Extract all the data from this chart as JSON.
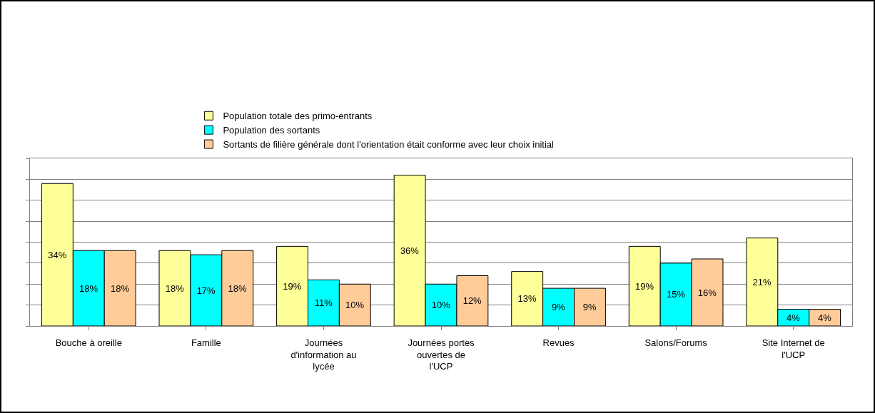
{
  "chart_data": {
    "type": "bar",
    "categories": [
      "Bouche à oreille",
      "Famille",
      "Journées d'information au lycée",
      "Journées portes ouvertes de l'UCP",
      "Revues",
      "Salons/Forums",
      "Site Internet de l'UCP"
    ],
    "series": [
      {
        "name": "Population totale des primo-entrants",
        "color": "#ffff99",
        "values": [
          34,
          18,
          19,
          36,
          13,
          19,
          21
        ],
        "value_labels": [
          "34%",
          "18%",
          "19%",
          "36%",
          "13%",
          "19%",
          "21%"
        ]
      },
      {
        "name": "Population des sortants",
        "color": "#00ffff",
        "values": [
          18,
          17,
          11,
          10,
          9,
          15,
          4
        ],
        "value_labels": [
          "18%",
          "17%",
          "11%",
          "10%",
          "9%",
          "15%",
          "4%"
        ]
      },
      {
        "name": "Sortants de filière générale dont l'orientation était conforme avec leur choix initial",
        "color": "#ffcc99",
        "values": [
          18,
          18,
          10,
          12,
          9,
          16,
          4
        ],
        "value_labels": [
          "18%",
          "18%",
          "10%",
          "12%",
          "9%",
          "16%",
          "4%"
        ]
      }
    ],
    "ylim": [
      0,
      40
    ],
    "yticks": [
      {
        "value": 0,
        "label": null
      },
      {
        "value": 5,
        "label": null
      },
      {
        "value": 10,
        "label": null
      },
      {
        "value": 15,
        "label": null
      },
      {
        "value": 20,
        "label": null
      },
      {
        "value": 25,
        "label": null
      },
      {
        "value": 30,
        "label": null
      },
      {
        "value": 35,
        "label": null
      },
      {
        "value": 40,
        "label": null
      }
    ],
    "tick_labels": "x",
    "grid": "y",
    "legend": "top"
  }
}
